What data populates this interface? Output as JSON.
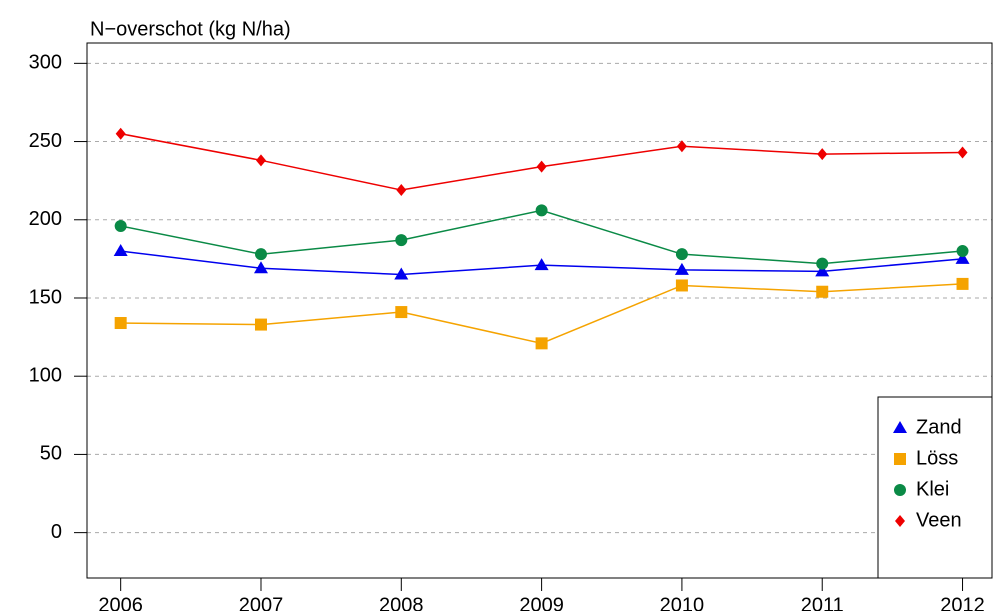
{
  "chart_data": {
    "type": "line",
    "y_label": "N−overschot (kg N/ha)",
    "x": [
      2006,
      2007,
      2008,
      2009,
      2010,
      2011,
      2012
    ],
    "series": [
      {
        "name": "Zand",
        "color": "#0000ee",
        "marker": "triangle",
        "values": [
          180,
          169,
          165,
          171,
          168,
          167,
          175
        ]
      },
      {
        "name": "Löss",
        "color": "#f5a300",
        "marker": "square",
        "values": [
          134,
          133,
          141,
          121,
          158,
          154,
          159
        ]
      },
      {
        "name": "Klei",
        "color": "#0a8a46",
        "marker": "circle",
        "values": [
          196,
          178,
          187,
          206,
          178,
          172,
          180
        ]
      },
      {
        "name": "Veen",
        "color": "#ee0000",
        "marker": "diamond",
        "values": [
          255,
          238,
          219,
          234,
          247,
          242,
          243
        ]
      }
    ],
    "xlim": [
      2005.76,
      2012.21
    ],
    "xticks": [
      2006,
      2007,
      2008,
      2009,
      2010,
      2011,
      2012
    ],
    "ylim": [
      -29,
      313
    ],
    "yticks": [
      0,
      50,
      100,
      150,
      200,
      250,
      300
    ],
    "grid": true,
    "legend": "bottom-right"
  }
}
